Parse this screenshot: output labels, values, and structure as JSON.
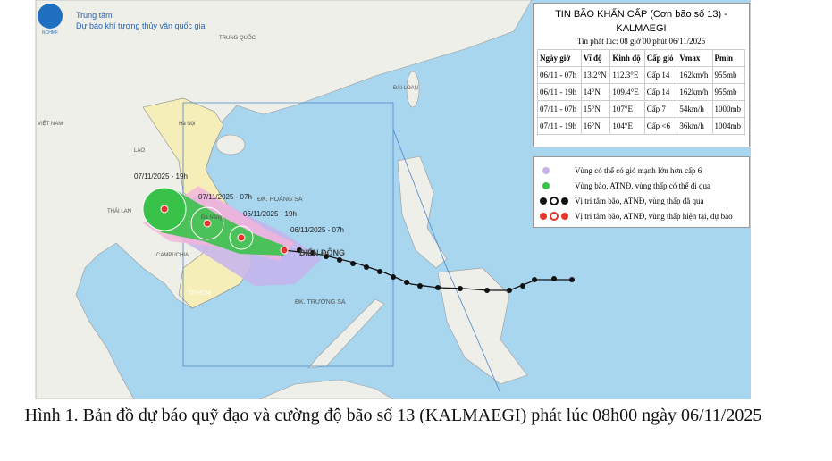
{
  "header": {
    "logo": "NCHMF",
    "org_line1": "Trung tâm",
    "org_line2": "Dự báo khí tượng thủy văn quốc gia"
  },
  "map_labels": {
    "china": "TRUNG QUỐC",
    "taiwan": "ĐÀI LOAN",
    "vietnam": "VIỆT NAM",
    "laos": "LÀO",
    "hanoi": "Hà Nội",
    "thailand": "THÁI LAN",
    "cambodia": "CAMPUCHIA",
    "hcm": "TP.HCM",
    "danang": "Đà Nẵng",
    "paracel": "ĐK. HOÀNG SA",
    "east_sea": "BIỂN ĐÔNG",
    "spratly": "ĐK. TRƯỜNG SA"
  },
  "track_labels": [
    "07/11/2025 - 19h",
    "07/11/2025 - 07h",
    "06/11/2025 - 19h",
    "06/11/2025 - 07h"
  ],
  "bulletin": {
    "title": "TIN BÃO KHẨN CẤP (Cơn bão số 13) - KALMAEGI",
    "issued": "Tin phát lúc: 08 giờ 00 phút 06/11/2025",
    "table": {
      "columns": [
        "Ngày giờ",
        "Vĩ độ",
        "Kinh độ",
        "Cấp gió",
        "Vmax",
        "Pmin"
      ],
      "rows": [
        [
          "06/11 - 07h",
          "13.2°N",
          "112.3°E",
          "Cấp 14",
          "162km/h",
          "955mb"
        ],
        [
          "06/11 - 19h",
          "14°N",
          "109.4°E",
          "Cấp 14",
          "162km/h",
          "955mb"
        ],
        [
          "07/11 - 07h",
          "15°N",
          "107°E",
          "Cấp 7",
          "54km/h",
          "1000mb"
        ],
        [
          "07/11 - 19h",
          "16°N",
          "104°E",
          "Cấp <6",
          "36km/h",
          "1004mb"
        ]
      ]
    }
  },
  "legend": [
    "Vùng có thể có gió mạnh lớn hơn cấp 6",
    "Vùng bão, ATNĐ, vùng thấp có thể đi qua",
    "Vị trí tâm bão, ATNĐ, vùng thấp đã qua",
    "Vị trí tâm bão, ATNĐ, vùng thấp hiện tại, dự báo"
  ],
  "caption": "Hình 1. Bản đồ dự báo quỹ đạo và cường độ bão số 13 (KALMAEGI) phát lúc 08h00 ngày 06/11/2025"
}
